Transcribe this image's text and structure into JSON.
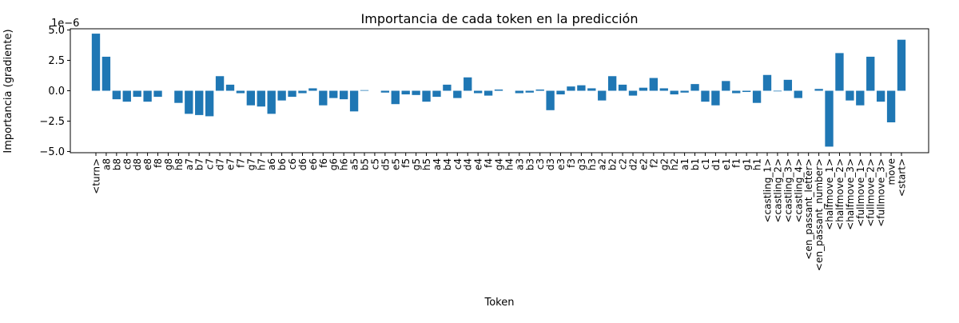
{
  "chart_data": {
    "type": "bar",
    "title": "Importancia de cada token en la predicción",
    "xlabel": "Token",
    "ylabel": "Importancia (gradiente)",
    "y_scale_label": "1e−6",
    "y_multiplier": 1e-06,
    "ylim": [
      -5.1,
      5.1
    ],
    "yticks": [
      -5.0,
      -2.5,
      0.0,
      2.5,
      5.0
    ],
    "ytick_labels": [
      "−5.0",
      "−2.5",
      "0.0",
      "2.5",
      "5.0"
    ],
    "bar_color": "#1f77b4",
    "grid": false,
    "categories": [
      "<turn>",
      "a8",
      "b8",
      "c8",
      "d8",
      "e8",
      "f8",
      "g8",
      "h8",
      "a7",
      "b7",
      "c7",
      "d7",
      "e7",
      "f7",
      "g7",
      "h7",
      "a6",
      "b6",
      "c6",
      "d6",
      "e6",
      "f6",
      "g6",
      "h6",
      "a5",
      "b5",
      "c5",
      "d5",
      "e5",
      "f5",
      "g5",
      "h5",
      "a4",
      "b4",
      "c4",
      "d4",
      "e4",
      "f4",
      "g4",
      "h4",
      "a3",
      "b3",
      "c3",
      "d3",
      "e3",
      "f3",
      "g3",
      "h3",
      "a2",
      "b2",
      "c2",
      "d2",
      "e2",
      "f2",
      "g2",
      "h2",
      "a1",
      "b1",
      "c1",
      "d1",
      "e1",
      "f1",
      "g1",
      "h1",
      "<castling_1>",
      "<castling_2>",
      "<castling_3>",
      "<castling_4>",
      "<en_passant_letter>",
      "<en_passant_number>",
      "<halfmove_1>",
      "<halfmove_2>",
      "<halfmove_3>",
      "<fullmove_1>",
      "<fullmove_2>",
      "<fullmove_3>",
      "move",
      "<start>"
    ],
    "values": [
      4.7,
      2.8,
      -0.7,
      -0.9,
      -0.5,
      -0.9,
      -0.5,
      0.0,
      -1.0,
      -1.9,
      -2.0,
      -2.1,
      1.2,
      0.5,
      -0.2,
      -1.2,
      -1.3,
      -1.9,
      -0.8,
      -0.5,
      -0.2,
      0.2,
      -1.2,
      -0.6,
      -0.7,
      -1.7,
      0.05,
      0.0,
      -0.15,
      -1.1,
      -0.3,
      -0.35,
      -0.9,
      -0.5,
      0.5,
      -0.6,
      1.1,
      -0.2,
      -0.4,
      0.1,
      0.0,
      -0.2,
      -0.15,
      0.1,
      -1.6,
      -0.3,
      0.35,
      0.45,
      0.2,
      -0.8,
      1.2,
      0.5,
      -0.4,
      0.25,
      1.05,
      0.2,
      -0.3,
      -0.15,
      0.55,
      -0.9,
      -1.2,
      0.8,
      -0.2,
      -0.1,
      -1.0,
      1.3,
      -0.05,
      0.9,
      -0.6,
      0.0,
      0.15,
      -4.6,
      3.1,
      -0.8,
      -1.2,
      2.8,
      -0.9,
      -2.6,
      4.2
    ]
  }
}
